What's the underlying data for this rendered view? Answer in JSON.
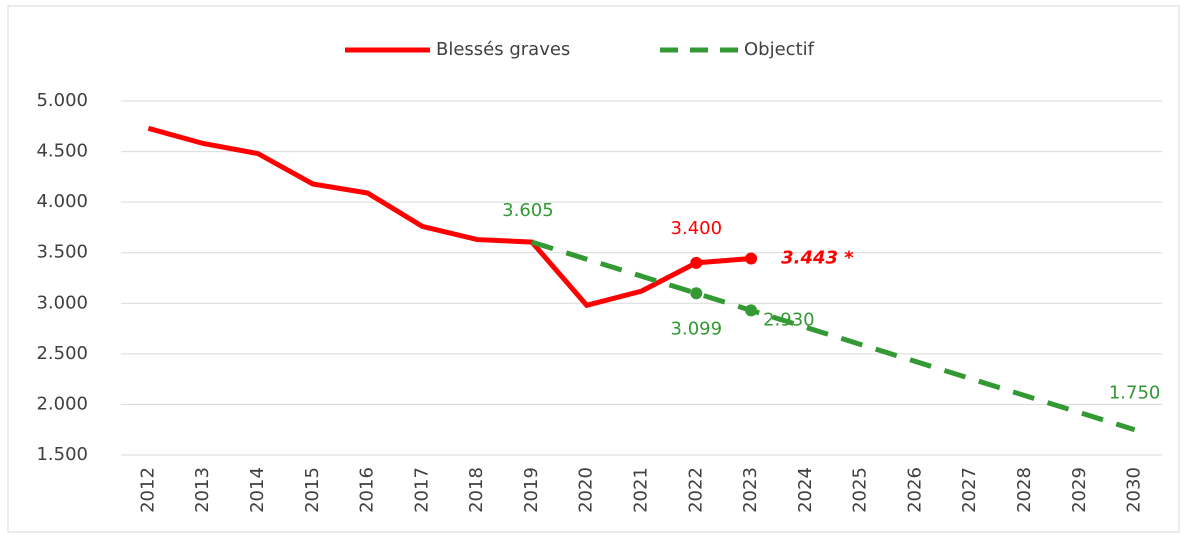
{
  "chart_data": {
    "type": "line",
    "categories": [
      "2012",
      "2013",
      "2014",
      "2015",
      "2016",
      "2017",
      "2018",
      "2019",
      "2020",
      "2021",
      "2022",
      "2023",
      "2024",
      "2025",
      "2026",
      "2027",
      "2028",
      "2029",
      "2030"
    ],
    "series": [
      {
        "name": "Blessés graves",
        "color": "#ff0000",
        "dash": false,
        "values": [
          4730,
          4580,
          4480,
          4180,
          4090,
          3760,
          3630,
          3605,
          2980,
          3120,
          3400,
          3443,
          null,
          null,
          null,
          null,
          null,
          null,
          null
        ],
        "value_labels": [
          null,
          null,
          null,
          null,
          null,
          null,
          null,
          null,
          null,
          null,
          "3.400",
          "3.443 *",
          null,
          null,
          null,
          null,
          null,
          null,
          null
        ]
      },
      {
        "name": "Objectif",
        "color": "#339933",
        "dash": true,
        "values": [
          null,
          null,
          null,
          null,
          null,
          null,
          null,
          3605,
          3436,
          3268,
          3099,
          2930,
          2762,
          2593,
          2425,
          2256,
          2087,
          1919,
          1750
        ],
        "value_labels": [
          null,
          null,
          null,
          null,
          null,
          null,
          null,
          "3.605",
          null,
          null,
          "3.099",
          "2.930",
          null,
          null,
          null,
          null,
          null,
          null,
          "1.750"
        ]
      }
    ],
    "markers": [
      "2022",
      "2023"
    ],
    "ylim": [
      1500,
      5000
    ],
    "yticks": [
      {
        "value": 1500,
        "label": "1.500"
      },
      {
        "value": 2000,
        "label": "2.000"
      },
      {
        "value": 2500,
        "label": "2.500"
      },
      {
        "value": 3000,
        "label": "3.000"
      },
      {
        "value": 3500,
        "label": "3.500"
      },
      {
        "value": 4000,
        "label": "4.000"
      },
      {
        "value": 4500,
        "label": "4.500"
      },
      {
        "value": 5000,
        "label": "5.000"
      }
    ],
    "grid": true,
    "legend": "top"
  }
}
